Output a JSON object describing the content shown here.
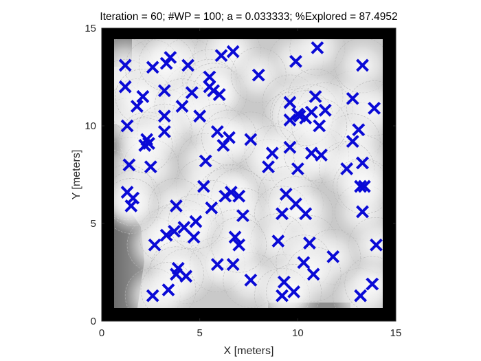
{
  "chart_data": {
    "type": "scatter",
    "title": "Iteration = 60; #WP = 100; a = 0.033333; %Explored = 87.4952",
    "xlabel": "X [meters]",
    "ylabel": "Y [meters]",
    "xlim": [
      0,
      15
    ],
    "ylim": [
      0,
      15
    ],
    "xticks": [
      0,
      5,
      10,
      15
    ],
    "yticks": [
      0,
      5,
      10,
      15
    ],
    "marker": "x",
    "marker_color": "#0a0ad6",
    "background": "grayscale exploration map",
    "grid": false,
    "series": [
      {
        "x": [
          3.5,
          4.4,
          6.1,
          6.7,
          9.9,
          11.0,
          12.8,
          13.3,
          1.2,
          1.2,
          2.6,
          3.2,
          4.6,
          5.5,
          5.5,
          5.7,
          6.0,
          8.0,
          9.6,
          9.6,
          10.0,
          10.9,
          1.3,
          3.2,
          1.8,
          2.1,
          3.3,
          4.1,
          5.0,
          5.9,
          6.2,
          10.1,
          10.7,
          11.4,
          13.1,
          13.9,
          2.3,
          2.4,
          3.2,
          5.3,
          7.6,
          9.6,
          12.8,
          13.3,
          1.4,
          2.5,
          5.2,
          8.5,
          8.7,
          10.0,
          10.7,
          11.2,
          12.5,
          13.2,
          1.3,
          1.6,
          6.3,
          6.6,
          7.0,
          9.4,
          9.9,
          13.3,
          13.4,
          3.8,
          5.6,
          7.2,
          9.2,
          10.4,
          3.7,
          4.2,
          4.7,
          6.8,
          9.0,
          10.6,
          14.0,
          2.7,
          3.3,
          3.9,
          4.3,
          6.7,
          9.3,
          11.8,
          5.9,
          3.8,
          7.6,
          10.3,
          10.8,
          13.2,
          13.8,
          2.6,
          3.4,
          9.2,
          9.8,
          7.0,
          4.8,
          2.2,
          10.4,
          6.5,
          11.1,
          1.5
        ],
        "y": [
          13.5,
          13.1,
          13.6,
          13.8,
          13.3,
          14.0,
          11.4,
          13.1,
          13.1,
          12.0,
          13.0,
          11.8,
          11.7,
          12.5,
          12.0,
          11.8,
          11.6,
          12.6,
          11.2,
          10.3,
          10.6,
          11.5,
          10.0,
          10.5,
          11.0,
          11.5,
          13.2,
          11.0,
          10.5,
          9.7,
          9.0,
          10.5,
          10.7,
          10.8,
          9.8,
          10.9,
          9.3,
          9.1,
          9.7,
          8.2,
          9.3,
          8.9,
          9.2,
          8.1,
          8.0,
          7.9,
          6.9,
          7.9,
          8.6,
          7.8,
          8.6,
          8.5,
          7.8,
          6.9,
          6.6,
          6.3,
          6.4,
          6.6,
          6.4,
          6.5,
          6.0,
          5.6,
          6.9,
          5.9,
          5.8,
          5.4,
          5.5,
          5.5,
          4.6,
          4.8,
          4.3,
          4.3,
          4.1,
          4.0,
          3.9,
          3.9,
          4.4,
          2.7,
          2.3,
          2.9,
          2.0,
          3.3,
          2.9,
          2.4,
          2.1,
          3.0,
          2.4,
          1.3,
          1.9,
          1.3,
          1.6,
          1.3,
          1.5,
          3.9,
          5.1,
          9.0,
          10.4,
          9.4,
          10.0,
          5.9
        ]
      }
    ]
  }
}
